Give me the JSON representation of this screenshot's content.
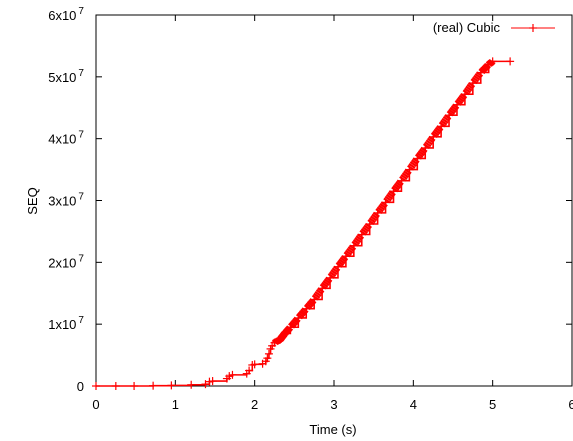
{
  "chart_data": {
    "type": "line",
    "xlabel": "Time (s)",
    "ylabel": "SEQ",
    "xlim": [
      0,
      6
    ],
    "ylim": [
      0,
      60000000
    ],
    "x_ticks": [
      {
        "value": 0,
        "label": "0"
      },
      {
        "value": 1,
        "label": "1"
      },
      {
        "value": 2,
        "label": "2"
      },
      {
        "value": 3,
        "label": "3"
      },
      {
        "value": 4,
        "label": "4"
      },
      {
        "value": 5,
        "label": "5"
      },
      {
        "value": 6,
        "label": "6"
      }
    ],
    "y_ticks": [
      {
        "value": 0,
        "mantissa": "0",
        "exponent": ""
      },
      {
        "value": 10000000,
        "mantissa": "1x10",
        "exponent": "7"
      },
      {
        "value": 20000000,
        "mantissa": "2x10",
        "exponent": "7"
      },
      {
        "value": 30000000,
        "mantissa": "3x10",
        "exponent": "7"
      },
      {
        "value": 40000000,
        "mantissa": "4x10",
        "exponent": "7"
      },
      {
        "value": 50000000,
        "mantissa": "5x10",
        "exponent": "7"
      },
      {
        "value": 60000000,
        "mantissa": "6x10",
        "exponent": "7"
      }
    ],
    "grid": false,
    "legend_position": "top-right",
    "series": [
      {
        "name": "(real) Cubic",
        "color": "#ff0000",
        "marker": "plus",
        "x": [
          0.0,
          0.25,
          0.48,
          0.72,
          0.95,
          1.2,
          1.38,
          1.43,
          1.47,
          1.65,
          1.68,
          1.72,
          1.9,
          1.93,
          1.97,
          2.0,
          2.1,
          2.14,
          2.16,
          2.18,
          2.2,
          2.22,
          2.25,
          2.32,
          2.35,
          2.38,
          2.45,
          2.55,
          2.65,
          2.75,
          2.85,
          2.95,
          3.05,
          3.15,
          3.25,
          3.35,
          3.45,
          3.55,
          3.65,
          3.75,
          3.85,
          3.95,
          4.05,
          4.15,
          4.25,
          4.35,
          4.45,
          4.55,
          4.65,
          4.75,
          4.85,
          4.95,
          5.0,
          5.22
        ],
        "y": [
          0,
          0,
          0,
          50000,
          100000,
          200000,
          300000,
          700000,
          800000,
          1200000,
          1600000,
          1800000,
          2000000,
          2500000,
          3400000,
          3500000,
          3600000,
          4000000,
          4500000,
          5200000,
          6000000,
          6500000,
          7000000,
          7500000,
          8000000,
          8500000,
          9500000,
          11000000,
          12500000,
          14000000,
          15800000,
          17500000,
          19300000,
          21000000,
          22700000,
          24500000,
          26200000,
          28000000,
          29700000,
          31500000,
          33200000,
          35000000,
          36800000,
          38500000,
          40300000,
          42000000,
          43800000,
          45500000,
          47200000,
          49000000,
          50700000,
          52000000,
          52500000,
          52500000
        ]
      }
    ]
  }
}
